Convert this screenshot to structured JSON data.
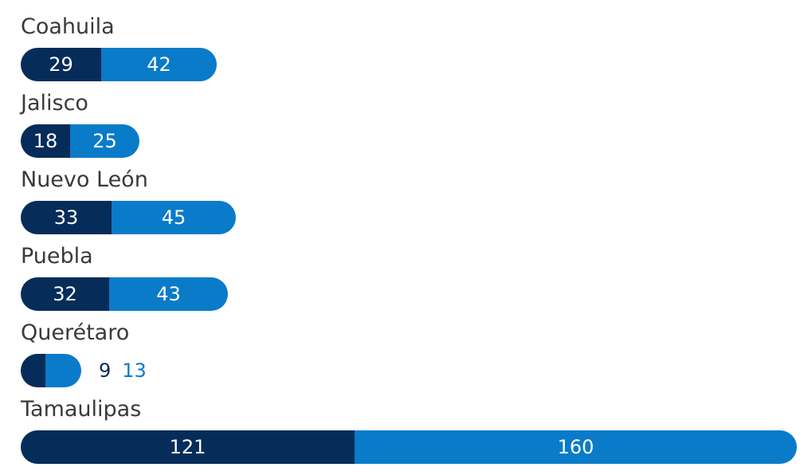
{
  "chart_data": {
    "type": "bar",
    "orientation": "horizontal",
    "stacked": true,
    "title": "",
    "xlabel": "",
    "ylabel": "",
    "categories": [
      "Coahuila",
      "Jalisco",
      "Nuevo León",
      "Puebla",
      "Querétaro",
      "Tamaulipas"
    ],
    "series": [
      {
        "values": [
          29,
          18,
          33,
          32,
          9,
          121
        ],
        "color": "#062c5a"
      },
      {
        "values": [
          42,
          25,
          45,
          43,
          13,
          160
        ],
        "color": "#0a7bc9"
      }
    ],
    "xlim": [
      0,
      281
    ],
    "grid": false,
    "legend": "none"
  }
}
